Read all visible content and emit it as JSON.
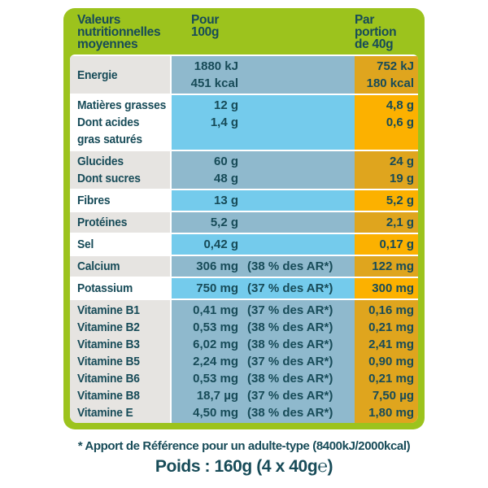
{
  "header": {
    "values_label": "Valeurs\nnutritionnelles\nmoyennes",
    "per_100g": "Pour\n100g",
    "per_portion": "Par portion\nde 40g"
  },
  "table": {
    "rows": [
      {
        "shaded": true,
        "labels": [
          "Energie"
        ],
        "lines": [
          {
            "value": "1880 kJ",
            "percent": "",
            "portion": "752 kJ"
          },
          {
            "value": "451 kcal",
            "percent": "",
            "portion": "180 kcal"
          }
        ]
      },
      {
        "shaded": false,
        "labels": [
          "Matières grasses",
          "Dont acides",
          "gras saturés"
        ],
        "lines": [
          {
            "value": "12 g",
            "percent": "",
            "portion": "4,8 g"
          },
          {
            "value": "1,4 g",
            "percent": "",
            "portion": "0,6 g"
          }
        ]
      },
      {
        "shaded": true,
        "labels": [
          "Glucides",
          "Dont sucres"
        ],
        "lines": [
          {
            "value": "60 g",
            "percent": "",
            "portion": "24 g"
          },
          {
            "value": "48 g",
            "percent": "",
            "portion": "19 g"
          }
        ]
      },
      {
        "shaded": false,
        "labels": [
          "Fibres"
        ],
        "lines": [
          {
            "value": "13 g",
            "percent": "",
            "portion": "5,2 g"
          }
        ]
      },
      {
        "shaded": true,
        "labels": [
          "Protéines"
        ],
        "lines": [
          {
            "value": "5,2 g",
            "percent": "",
            "portion": "2,1 g"
          }
        ]
      },
      {
        "shaded": false,
        "labels": [
          "Sel"
        ],
        "lines": [
          {
            "value": "0,42 g",
            "percent": "",
            "portion": "0,17 g"
          }
        ]
      },
      {
        "shaded": true,
        "labels": [
          "Calcium"
        ],
        "lines": [
          {
            "value": "306 mg",
            "percent": "(38 % des AR*)",
            "portion": "122 mg"
          }
        ]
      },
      {
        "shaded": false,
        "labels": [
          "Potassium"
        ],
        "lines": [
          {
            "value": "750 mg",
            "percent": "(37 % des AR*)",
            "portion": "300 mg"
          }
        ]
      },
      {
        "shaded": true,
        "labels": [
          "Vitamine B1",
          "Vitamine B2",
          "Vitamine B3",
          "Vitamine B5",
          "Vitamine B6",
          "Vitamine B8",
          "Vitamine E"
        ],
        "lines": [
          {
            "value": "0,41 mg",
            "percent": "(37 % des AR*)",
            "portion": "0,16 mg"
          },
          {
            "value": "0,53 mg",
            "percent": "(38 % des AR*)",
            "portion": "0,21 mg"
          },
          {
            "value": "6,02 mg",
            "percent": "(38 % des AR*)",
            "portion": "2,41 mg"
          },
          {
            "value": "2,24 mg",
            "percent": "(37 % des AR*)",
            "portion": "0,90 mg"
          },
          {
            "value": "0,53 mg",
            "percent": "(38 % des AR*)",
            "portion": "0,21 mg"
          },
          {
            "value": "18,7 µg",
            "percent": "(37 % des AR*)",
            "portion": "7,50 µg"
          },
          {
            "value": "4,50 mg",
            "percent": "(38 % des AR*)",
            "portion": "1,80 mg"
          }
        ]
      }
    ]
  },
  "footer": {
    "reference_note": "* Apport de Référence pour un adulte-type (8400kJ/2000kcal)",
    "weight": "Poids : 160g (4 x 40g℮)"
  },
  "colors": {
    "green": "#9CC31D",
    "text_dark": "#174B58",
    "label_shaded": "#E6E4E1",
    "blue": "#74CBEC",
    "blue_shaded": "#8FB9CD",
    "orange": "#FCB100",
    "orange_shaded": "#DFA51E"
  }
}
